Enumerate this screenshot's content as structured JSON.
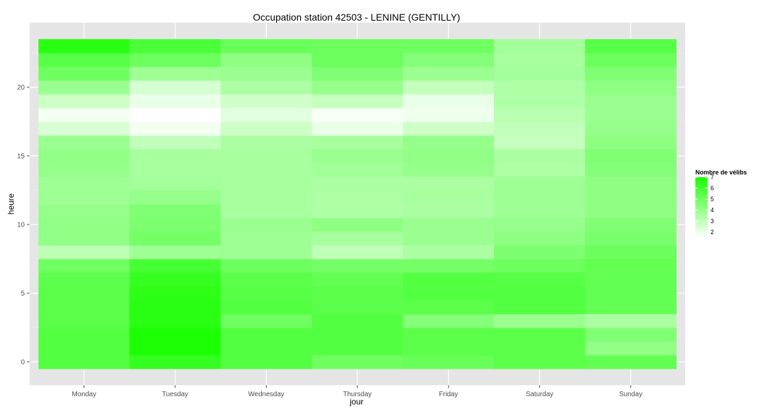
{
  "chart_data": {
    "type": "heatmap",
    "title": "Occupation station 42503 - LENINE (GENTILLY)",
    "xlabel": "jour",
    "ylabel": "heure",
    "x": [
      "Monday",
      "Tuesday",
      "Wednesday",
      "Thursday",
      "Friday",
      "Saturday",
      "Sunday"
    ],
    "y": [
      0,
      1,
      2,
      3,
      4,
      5,
      6,
      7,
      8,
      9,
      10,
      11,
      12,
      13,
      14,
      15,
      16,
      17,
      18,
      19,
      20,
      21,
      22,
      23
    ],
    "y_ticks": [
      0,
      5,
      10,
      15,
      20
    ],
    "ylim": [
      -0.5,
      23.5
    ],
    "grid": true,
    "color_low": "#ffffff",
    "color_high": "#18ff00",
    "legend": {
      "title": "Nombre de vélibs",
      "placement": "right",
      "breaks": [
        2,
        3,
        4,
        5,
        6,
        7
      ],
      "range": [
        1.5,
        7
      ]
    },
    "values": [
      [
        5.6,
        6.3,
        5.6,
        4.9,
        5.1,
        5.4,
        5.2
      ],
      [
        5.6,
        6.9,
        5.6,
        5.6,
        5.4,
        5.4,
        4.1
      ],
      [
        5.6,
        6.9,
        5.6,
        5.6,
        5.4,
        5.4,
        4.5
      ],
      [
        5.4,
        6.6,
        4.9,
        5.6,
        4.4,
        3.9,
        3.5
      ],
      [
        5.4,
        6.6,
        5.6,
        5.4,
        5.4,
        5.6,
        5.2
      ],
      [
        5.4,
        6.5,
        5.5,
        5.4,
        5.6,
        5.6,
        5.2
      ],
      [
        5.3,
        6.3,
        5.4,
        5.2,
        5.6,
        5.5,
        5.2
      ],
      [
        4.9,
        5.9,
        5.0,
        4.8,
        4.8,
        5.0,
        5.2
      ],
      [
        3.1,
        3.8,
        3.8,
        3.0,
        3.5,
        4.6,
        5.0
      ],
      [
        4.1,
        4.8,
        3.8,
        3.6,
        3.9,
        4.2,
        4.7
      ],
      [
        4.1,
        4.6,
        3.9,
        4.2,
        3.9,
        4.0,
        4.5
      ],
      [
        4.0,
        4.5,
        3.6,
        3.4,
        3.5,
        3.8,
        4.2
      ],
      [
        3.8,
        4.0,
        3.6,
        3.4,
        3.6,
        3.8,
        4.2
      ],
      [
        3.8,
        3.7,
        3.6,
        3.5,
        3.5,
        3.8,
        4.2
      ],
      [
        4.0,
        3.6,
        3.6,
        3.7,
        4.0,
        3.4,
        4.4
      ],
      [
        4.1,
        3.6,
        3.6,
        3.9,
        4.1,
        3.5,
        4.5
      ],
      [
        3.9,
        3.0,
        3.5,
        3.6,
        4.0,
        2.9,
        4.2
      ],
      [
        2.4,
        1.8,
        2.7,
        2.0,
        2.7,
        3.0,
        4.0
      ],
      [
        1.8,
        1.5,
        2.2,
        1.7,
        1.9,
        3.2,
        3.9
      ],
      [
        2.7,
        2.0,
        2.6,
        2.9,
        2.0,
        3.4,
        3.9
      ],
      [
        3.9,
        2.5,
        3.5,
        4.0,
        2.9,
        3.4,
        4.2
      ],
      [
        4.9,
        3.8,
        3.9,
        4.5,
        3.9,
        3.7,
        4.5
      ],
      [
        5.5,
        5.0,
        4.2,
        5.0,
        4.4,
        3.6,
        5.0
      ],
      [
        6.6,
        5.8,
        5.1,
        5.0,
        4.9,
        3.7,
        5.5
      ]
    ]
  }
}
